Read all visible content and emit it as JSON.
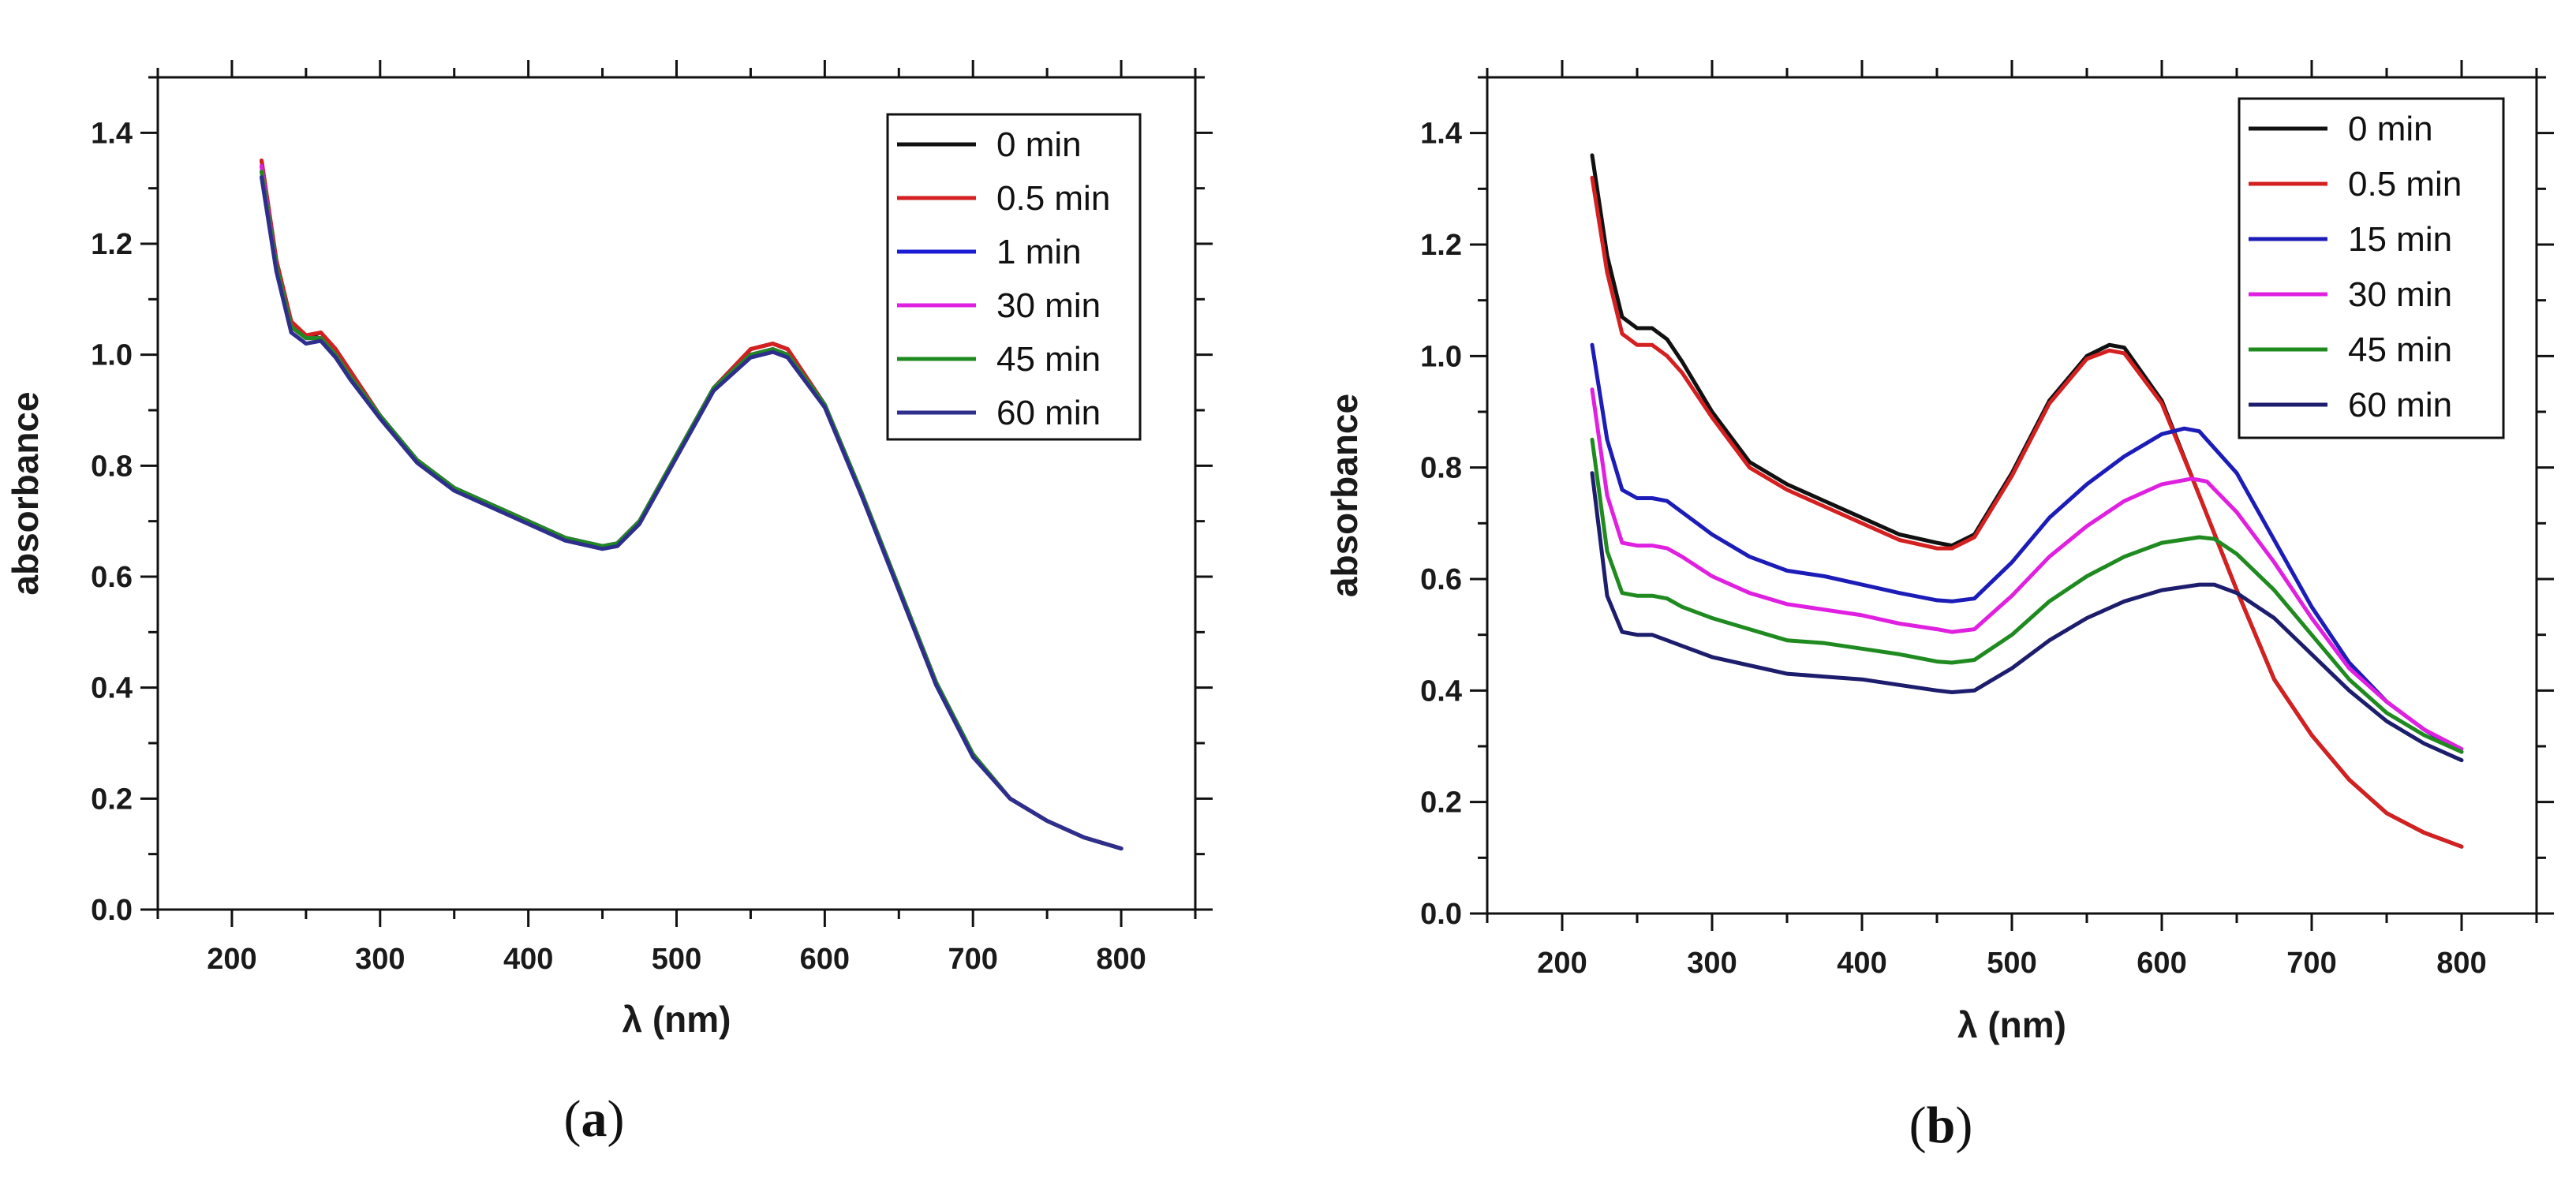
{
  "chart_data": [
    {
      "type": "line",
      "panel_label": "a",
      "xlabel": "λ (nm)",
      "ylabel": "absorbance",
      "xlim": [
        150,
        850
      ],
      "ylim": [
        0.0,
        1.5
      ],
      "x_ticks": [
        200,
        300,
        400,
        500,
        600,
        700,
        800
      ],
      "y_ticks": [
        0.0,
        0.2,
        0.4,
        0.6,
        0.8,
        1.0,
        1.2,
        1.4
      ],
      "grid": false,
      "legend_position": "top-right",
      "series": [
        {
          "name": "0 min",
          "color": "#111111",
          "x": [
            220,
            230,
            240,
            250,
            260,
            270,
            280,
            300,
            325,
            350,
            375,
            400,
            425,
            450,
            460,
            475,
            500,
            525,
            550,
            565,
            575,
            600,
            625,
            650,
            675,
            700,
            725,
            750,
            775,
            800
          ],
          "y": [
            1.35,
            1.17,
            1.06,
            1.03,
            1.04,
            1.01,
            0.97,
            0.89,
            0.81,
            0.76,
            0.73,
            0.7,
            0.67,
            0.655,
            0.66,
            0.7,
            0.82,
            0.94,
            1.01,
            1.02,
            1.01,
            0.91,
            0.75,
            0.58,
            0.41,
            0.28,
            0.2,
            0.16,
            0.13,
            0.11
          ]
        },
        {
          "name": "0.5 min",
          "color": "#d42020",
          "x": [
            220,
            230,
            240,
            250,
            260,
            270,
            280,
            300,
            325,
            350,
            375,
            400,
            425,
            450,
            460,
            475,
            500,
            525,
            550,
            565,
            575,
            600,
            625,
            650,
            675,
            700,
            725,
            750,
            775,
            800
          ],
          "y": [
            1.35,
            1.17,
            1.06,
            1.035,
            1.04,
            1.01,
            0.97,
            0.89,
            0.81,
            0.76,
            0.73,
            0.7,
            0.67,
            0.655,
            0.66,
            0.7,
            0.82,
            0.94,
            1.01,
            1.02,
            1.01,
            0.91,
            0.75,
            0.58,
            0.41,
            0.28,
            0.2,
            0.16,
            0.13,
            0.11
          ]
        },
        {
          "name": "1 min",
          "color": "#1c1cd6",
          "x": [
            220,
            230,
            240,
            250,
            260,
            270,
            280,
            300,
            325,
            350,
            375,
            400,
            425,
            450,
            460,
            475,
            500,
            525,
            550,
            565,
            575,
            600,
            625,
            650,
            675,
            700,
            725,
            750,
            775,
            800
          ],
          "y": [
            1.34,
            1.16,
            1.05,
            1.03,
            1.03,
            1.0,
            0.96,
            0.89,
            0.81,
            0.76,
            0.73,
            0.7,
            0.67,
            0.655,
            0.66,
            0.7,
            0.82,
            0.94,
            1.0,
            1.01,
            1.0,
            0.91,
            0.75,
            0.58,
            0.41,
            0.28,
            0.2,
            0.16,
            0.13,
            0.11
          ]
        },
        {
          "name": "30 min",
          "color": "#e020e0",
          "x": [
            220,
            230,
            240,
            250,
            260,
            270,
            280,
            300,
            325,
            350,
            375,
            400,
            425,
            450,
            460,
            475,
            500,
            525,
            550,
            565,
            575,
            600,
            625,
            650,
            675,
            700,
            725,
            750,
            775,
            800
          ],
          "y": [
            1.34,
            1.16,
            1.05,
            1.03,
            1.03,
            1.0,
            0.96,
            0.89,
            0.81,
            0.76,
            0.73,
            0.7,
            0.67,
            0.655,
            0.66,
            0.7,
            0.82,
            0.94,
            1.0,
            1.01,
            1.0,
            0.91,
            0.75,
            0.58,
            0.41,
            0.28,
            0.2,
            0.16,
            0.13,
            0.11
          ]
        },
        {
          "name": "45 min",
          "color": "#1f8a1f",
          "x": [
            220,
            230,
            240,
            250,
            260,
            270,
            280,
            300,
            325,
            350,
            375,
            400,
            425,
            450,
            460,
            475,
            500,
            525,
            550,
            565,
            575,
            600,
            625,
            650,
            675,
            700,
            725,
            750,
            775,
            800
          ],
          "y": [
            1.33,
            1.16,
            1.05,
            1.03,
            1.03,
            1.0,
            0.96,
            0.89,
            0.81,
            0.76,
            0.73,
            0.7,
            0.67,
            0.655,
            0.66,
            0.7,
            0.82,
            0.94,
            1.0,
            1.01,
            1.0,
            0.91,
            0.75,
            0.58,
            0.41,
            0.28,
            0.2,
            0.16,
            0.13,
            0.11
          ]
        },
        {
          "name": "60 min",
          "color": "#2e2e8c",
          "x": [
            220,
            230,
            240,
            250,
            260,
            270,
            280,
            300,
            325,
            350,
            375,
            400,
            425,
            450,
            460,
            475,
            500,
            525,
            550,
            565,
            575,
            600,
            625,
            650,
            675,
            700,
            725,
            750,
            775,
            800
          ],
          "y": [
            1.32,
            1.15,
            1.04,
            1.02,
            1.025,
            0.995,
            0.955,
            0.885,
            0.805,
            0.755,
            0.725,
            0.695,
            0.665,
            0.65,
            0.655,
            0.695,
            0.815,
            0.935,
            0.995,
            1.005,
            0.995,
            0.905,
            0.745,
            0.575,
            0.405,
            0.275,
            0.2,
            0.16,
            0.13,
            0.11
          ]
        }
      ]
    },
    {
      "type": "line",
      "panel_label": "b",
      "xlabel": "λ (nm)",
      "ylabel": "absorbance",
      "xlim": [
        150,
        850
      ],
      "ylim": [
        0.0,
        1.5
      ],
      "x_ticks": [
        200,
        300,
        400,
        500,
        600,
        700,
        800
      ],
      "y_ticks": [
        0.0,
        0.2,
        0.4,
        0.6,
        0.8,
        1.0,
        1.2,
        1.4
      ],
      "grid": false,
      "legend_position": "top-right",
      "series": [
        {
          "name": "0 min",
          "color": "#111111",
          "x": [
            220,
            230,
            240,
            250,
            260,
            270,
            280,
            300,
            325,
            350,
            375,
            400,
            425,
            450,
            460,
            475,
            500,
            525,
            550,
            565,
            575,
            600,
            625,
            650,
            675,
            700,
            725,
            750,
            775,
            800
          ],
          "y": [
            1.36,
            1.18,
            1.07,
            1.05,
            1.05,
            1.03,
            0.99,
            0.9,
            0.81,
            0.77,
            0.74,
            0.71,
            0.68,
            0.665,
            0.66,
            0.68,
            0.79,
            0.92,
            1.0,
            1.02,
            1.015,
            0.92,
            0.75,
            0.58,
            0.42,
            0.32,
            0.24,
            0.18,
            0.145,
            0.12
          ]
        },
        {
          "name": "0.5 min",
          "color": "#d42020",
          "x": [
            220,
            230,
            240,
            250,
            260,
            270,
            280,
            300,
            325,
            350,
            375,
            400,
            425,
            450,
            460,
            475,
            500,
            525,
            550,
            565,
            575,
            600,
            625,
            650,
            675,
            700,
            725,
            750,
            775,
            800
          ],
          "y": [
            1.32,
            1.15,
            1.04,
            1.02,
            1.02,
            1.0,
            0.97,
            0.89,
            0.8,
            0.76,
            0.73,
            0.7,
            0.67,
            0.655,
            0.655,
            0.675,
            0.785,
            0.915,
            0.995,
            1.01,
            1.005,
            0.915,
            0.75,
            0.58,
            0.42,
            0.32,
            0.24,
            0.18,
            0.145,
            0.12
          ]
        },
        {
          "name": "15 min",
          "color": "#1c1cb8",
          "x": [
            220,
            230,
            240,
            250,
            260,
            270,
            280,
            300,
            325,
            350,
            375,
            400,
            425,
            450,
            460,
            475,
            500,
            525,
            550,
            575,
            600,
            615,
            625,
            650,
            675,
            700,
            725,
            750,
            775,
            800
          ],
          "y": [
            1.02,
            0.85,
            0.76,
            0.745,
            0.745,
            0.74,
            0.72,
            0.68,
            0.64,
            0.615,
            0.605,
            0.59,
            0.575,
            0.562,
            0.56,
            0.565,
            0.63,
            0.71,
            0.77,
            0.82,
            0.86,
            0.87,
            0.865,
            0.79,
            0.67,
            0.55,
            0.45,
            0.38,
            0.33,
            0.29
          ]
        },
        {
          "name": "30 min",
          "color": "#e020e0",
          "x": [
            220,
            230,
            240,
            250,
            260,
            270,
            280,
            300,
            325,
            350,
            375,
            400,
            425,
            450,
            460,
            475,
            500,
            525,
            550,
            575,
            600,
            620,
            630,
            650,
            675,
            700,
            725,
            750,
            775,
            800
          ],
          "y": [
            0.94,
            0.75,
            0.665,
            0.66,
            0.66,
            0.655,
            0.64,
            0.605,
            0.575,
            0.555,
            0.545,
            0.535,
            0.52,
            0.51,
            0.505,
            0.51,
            0.57,
            0.64,
            0.695,
            0.74,
            0.77,
            0.78,
            0.775,
            0.72,
            0.63,
            0.53,
            0.44,
            0.38,
            0.33,
            0.295
          ]
        },
        {
          "name": "45 min",
          "color": "#1f8a1f",
          "x": [
            220,
            230,
            240,
            250,
            260,
            270,
            280,
            300,
            325,
            350,
            375,
            400,
            425,
            450,
            460,
            475,
            500,
            525,
            550,
            575,
            600,
            625,
            635,
            650,
            675,
            700,
            725,
            750,
            775,
            800
          ],
          "y": [
            0.85,
            0.65,
            0.575,
            0.57,
            0.57,
            0.565,
            0.55,
            0.53,
            0.51,
            0.49,
            0.485,
            0.475,
            0.465,
            0.452,
            0.45,
            0.455,
            0.5,
            0.56,
            0.605,
            0.64,
            0.665,
            0.675,
            0.672,
            0.645,
            0.58,
            0.5,
            0.42,
            0.36,
            0.32,
            0.29
          ]
        },
        {
          "name": "60 min",
          "color": "#1d1d6e",
          "x": [
            220,
            230,
            240,
            250,
            260,
            270,
            280,
            300,
            325,
            350,
            375,
            400,
            425,
            450,
            460,
            475,
            500,
            525,
            550,
            575,
            600,
            625,
            635,
            650,
            675,
            700,
            725,
            750,
            775,
            800
          ],
          "y": [
            0.79,
            0.57,
            0.505,
            0.5,
            0.5,
            0.49,
            0.48,
            0.46,
            0.445,
            0.43,
            0.425,
            0.42,
            0.41,
            0.4,
            0.397,
            0.4,
            0.44,
            0.49,
            0.53,
            0.56,
            0.58,
            0.59,
            0.59,
            0.575,
            0.53,
            0.465,
            0.4,
            0.345,
            0.305,
            0.275
          ]
        }
      ]
    }
  ]
}
